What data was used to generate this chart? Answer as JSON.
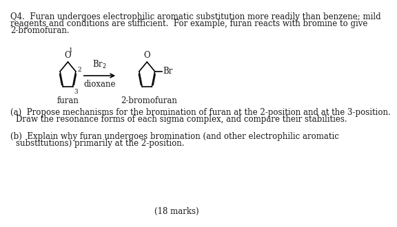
{
  "title_text": "Q4. Furan undergoes electrophilic aromatic substitution more readily than benzene; mild\nreagents and conditions are sufficient. For example, furan reacts with bromine to give\n2-bromofuran.",
  "part_a": "(a)  Propose mechanisms for the bromination of furan at the 2-position and at the 3-position.\n      Draw the resonance forms of each sigma complex, and compare their stabilities.",
  "part_b": "(b)  Explain why furan undergoes bromination (and other electrophilic aromatic\n      substitutions) primarily at the 2-position.",
  "marks": "(18 marks)",
  "label_furan": "furan",
  "label_product": "2-bromofuran",
  "reagent_top": "Br₂",
  "reagent_bottom": "dioxane",
  "bg_color": "#ffffff",
  "text_color": "#1a1a1a",
  "font_size": 8.5,
  "font_family": "serif"
}
